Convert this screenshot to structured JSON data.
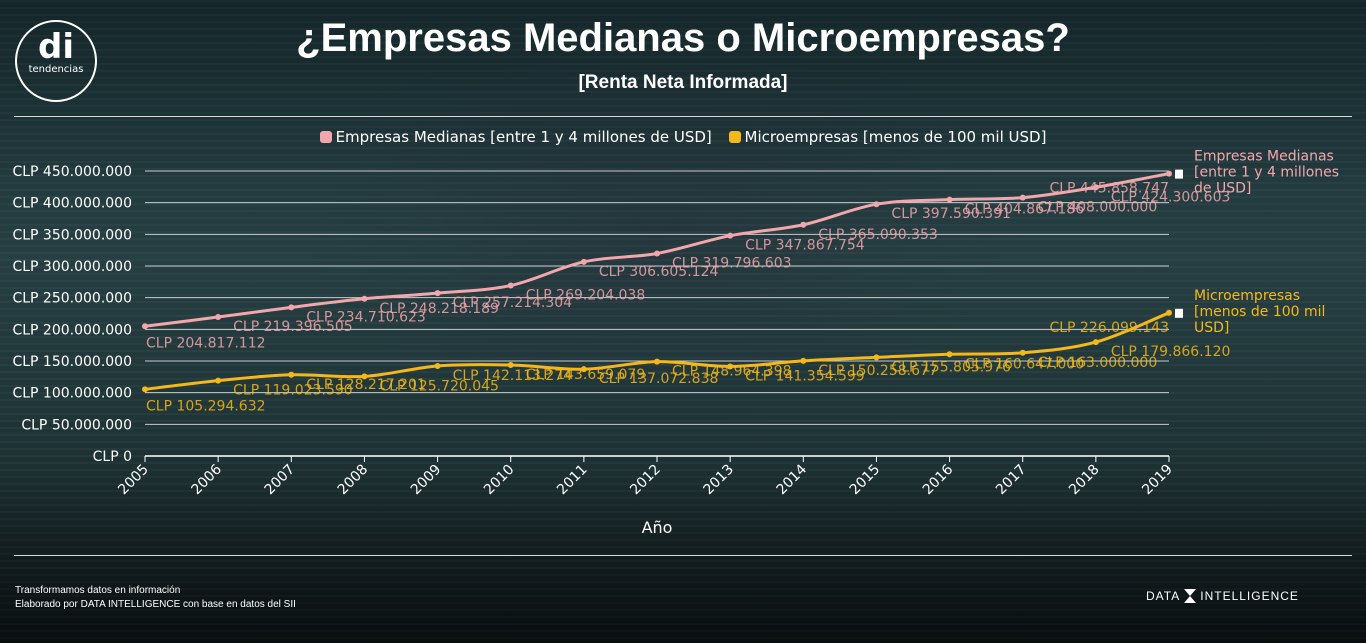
{
  "header": {
    "logo_text": "di",
    "logo_sub": "tendencias",
    "title": "¿Empresas Medianas o Microempresas?",
    "subtitle": "[Renta Neta Informada]"
  },
  "colors": {
    "medianas": "#f2a7ad",
    "micro": "#f5b81a",
    "text_grid": "#ffffff"
  },
  "chart_data": {
    "type": "line",
    "title": "¿Empresas Medianas o Microempresas?",
    "subtitle": "[Renta Neta Informada]",
    "xlabel": "Año",
    "ylabel": "",
    "x": [
      "2005",
      "2006",
      "2007",
      "2008",
      "2009",
      "2010",
      "2011",
      "2012",
      "2013",
      "2014",
      "2015",
      "2016",
      "2017",
      "2018",
      "2019"
    ],
    "ylim": [
      0,
      450000000
    ],
    "yticks": [
      "CLP 0",
      "CLP 50.000.000",
      "CLP 100.000.000",
      "CLP 150.000.000",
      "CLP 200.000.000",
      "CLP 250.000.000",
      "CLP 300.000.000",
      "CLP 350.000.000",
      "CLP 400.000.000",
      "CLP 450.000.000"
    ],
    "grid": true,
    "legend": "top",
    "series": [
      {
        "name": "Empresas Medianas [entre 1 y 4 millones de USD]",
        "end_label": [
          "Empresas Medianas",
          "[entre 1 y 4 millones",
          "de USD]"
        ],
        "values": [
          204817112,
          219396505,
          234710623,
          248218189,
          257214304,
          269204038,
          306605124,
          319796603,
          347867754,
          365090353,
          397590391,
          404867186,
          408000000,
          424300603,
          445858747
        ],
        "labels": [
          "CLP 204.817.112",
          "CLP 219.396.505",
          "CLP 234.710.623",
          "CLP 248.218.189",
          "CLP 257.214.304",
          "CLP 269.204.038",
          "CLP 306.605.124",
          "CLP 319.796.603",
          "CLP 347.867.754",
          "CLP 365.090.353",
          "CLP 397.590.391",
          "CLP 404.867.186",
          "CLP 408.000.000",
          "CLP 424.300.603",
          "CLP 445.858.747"
        ]
      },
      {
        "name": "Microempresas [menos de 100 mil USD]",
        "end_label": [
          "Microempresas",
          "[menos de 100 mil",
          "USD]"
        ],
        "values": [
          105294632,
          119023590,
          128217201,
          125720045,
          142113274,
          143659079,
          137072838,
          148964398,
          141354599,
          150258677,
          155805976,
          160647000,
          163000000,
          179866120,
          226099143
        ],
        "labels": [
          "CLP 105.294.632",
          "CLP 119.023.590",
          "CLP 128.217.201",
          "CLP 125.720.045",
          "CLP 142.113.274",
          "CLP 143.659.079",
          "CLP 137.072.838",
          "CLP 148.964.398",
          "CLP 141.354.599",
          "CLP 150.258.677",
          "CLP 155.805.976",
          "CLP 160.647.000",
          "CLP 163.000.000",
          "CLP 179.866.120",
          "CLP 226.099.143"
        ]
      }
    ]
  },
  "footer": {
    "line1": "Transformamos datos en información",
    "line2": "Elaborado por DATA INTELLIGENCE con base en datos del SII",
    "brand_left": "DATA",
    "brand_right": "INTELLIGENCE"
  }
}
